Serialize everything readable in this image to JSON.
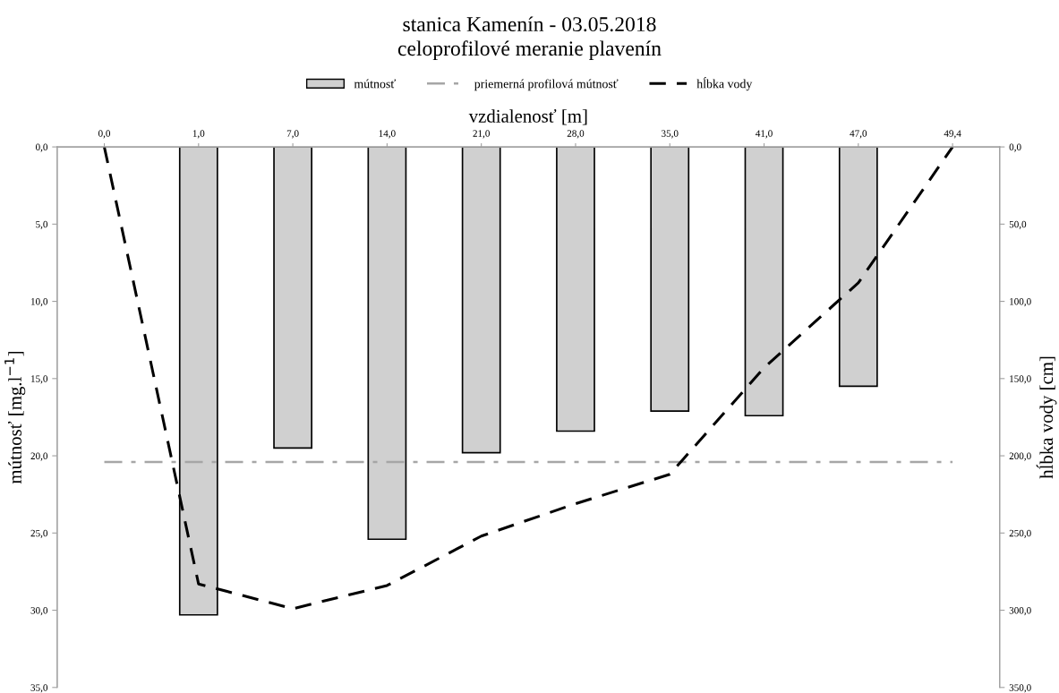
{
  "chart_data": {
    "type": "bar",
    "title": "stanica Kamenín - 03.05.2018",
    "subtitle": "celoprofilové meranie plavenín",
    "xlabel": "vzdialenosť [m]",
    "ylabel": "mútnosť [mg.l$^{−1}$]",
    "y2label": "hĺbka vody [cm]",
    "categories": [
      "0,0",
      "1,0",
      "7,0",
      "14,0",
      "21,0",
      "28,0",
      "35,0",
      "41,0",
      "47,0",
      "49,4"
    ],
    "series": [
      {
        "name": "mútnosť",
        "color": "#d0d0d0",
        "values": [
          null,
          30.3,
          19.5,
          25.4,
          19.8,
          18.4,
          17.1,
          17.4,
          15.5,
          null
        ]
      },
      {
        "name": "hĺbka vody",
        "type": "line",
        "axis": "y2",
        "color": "#000000",
        "line_style": "dashed",
        "values": [
          0,
          283,
          299,
          284,
          252,
          231,
          212,
          143,
          88,
          0
        ]
      }
    ],
    "ref_lines": [
      {
        "axis": "y",
        "value": 20.4,
        "label": "priemerná profilová mútnosť",
        "color": "#a6a6a6",
        "line_style": "dashdot"
      }
    ],
    "ylim": [
      35,
      0
    ],
    "yticks": [
      {
        "value": 0,
        "label": "0,0"
      },
      {
        "value": 5,
        "label": "5,0"
      },
      {
        "value": 10,
        "label": "10,0"
      },
      {
        "value": 15,
        "label": "15,0"
      },
      {
        "value": 20,
        "label": "20,0"
      },
      {
        "value": 25,
        "label": "25,0"
      },
      {
        "value": 30,
        "label": "30,0"
      },
      {
        "value": 35,
        "label": "35,0"
      }
    ],
    "y2lim": [
      350,
      0
    ],
    "y2ticks": [
      {
        "value": 0,
        "label": "0,0"
      },
      {
        "value": 50,
        "label": "50,0"
      },
      {
        "value": 100,
        "label": "100,0"
      },
      {
        "value": 150,
        "label": "150,0"
      },
      {
        "value": 200,
        "label": "200,0"
      },
      {
        "value": 250,
        "label": "250,0"
      },
      {
        "value": 300,
        "label": "300,0"
      },
      {
        "value": 350,
        "label": "350,0"
      }
    ],
    "grid": false,
    "legend": "top"
  }
}
